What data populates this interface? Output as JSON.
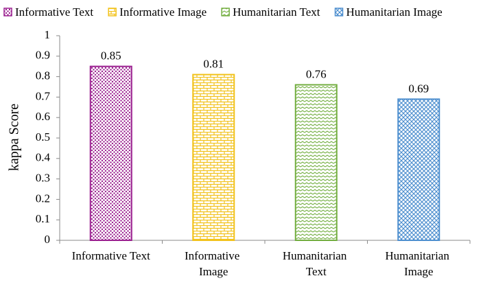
{
  "chart_data": {
    "type": "bar",
    "categories": [
      "Informative Text",
      "Informative Image",
      "Humanitarian Text",
      "Humanitarian Image"
    ],
    "values": [
      0.85,
      0.81,
      0.76,
      0.69
    ],
    "colors": [
      "#9a1f8f",
      "#f2c21b",
      "#72ad3f",
      "#4e8fcf"
    ],
    "y_label": "kappa Score",
    "ylim": [
      0,
      1
    ],
    "yticks": [
      0,
      0.1,
      0.2,
      0.3,
      0.4,
      0.5,
      0.6,
      0.7,
      0.8,
      0.9,
      1
    ],
    "legend": "top"
  }
}
